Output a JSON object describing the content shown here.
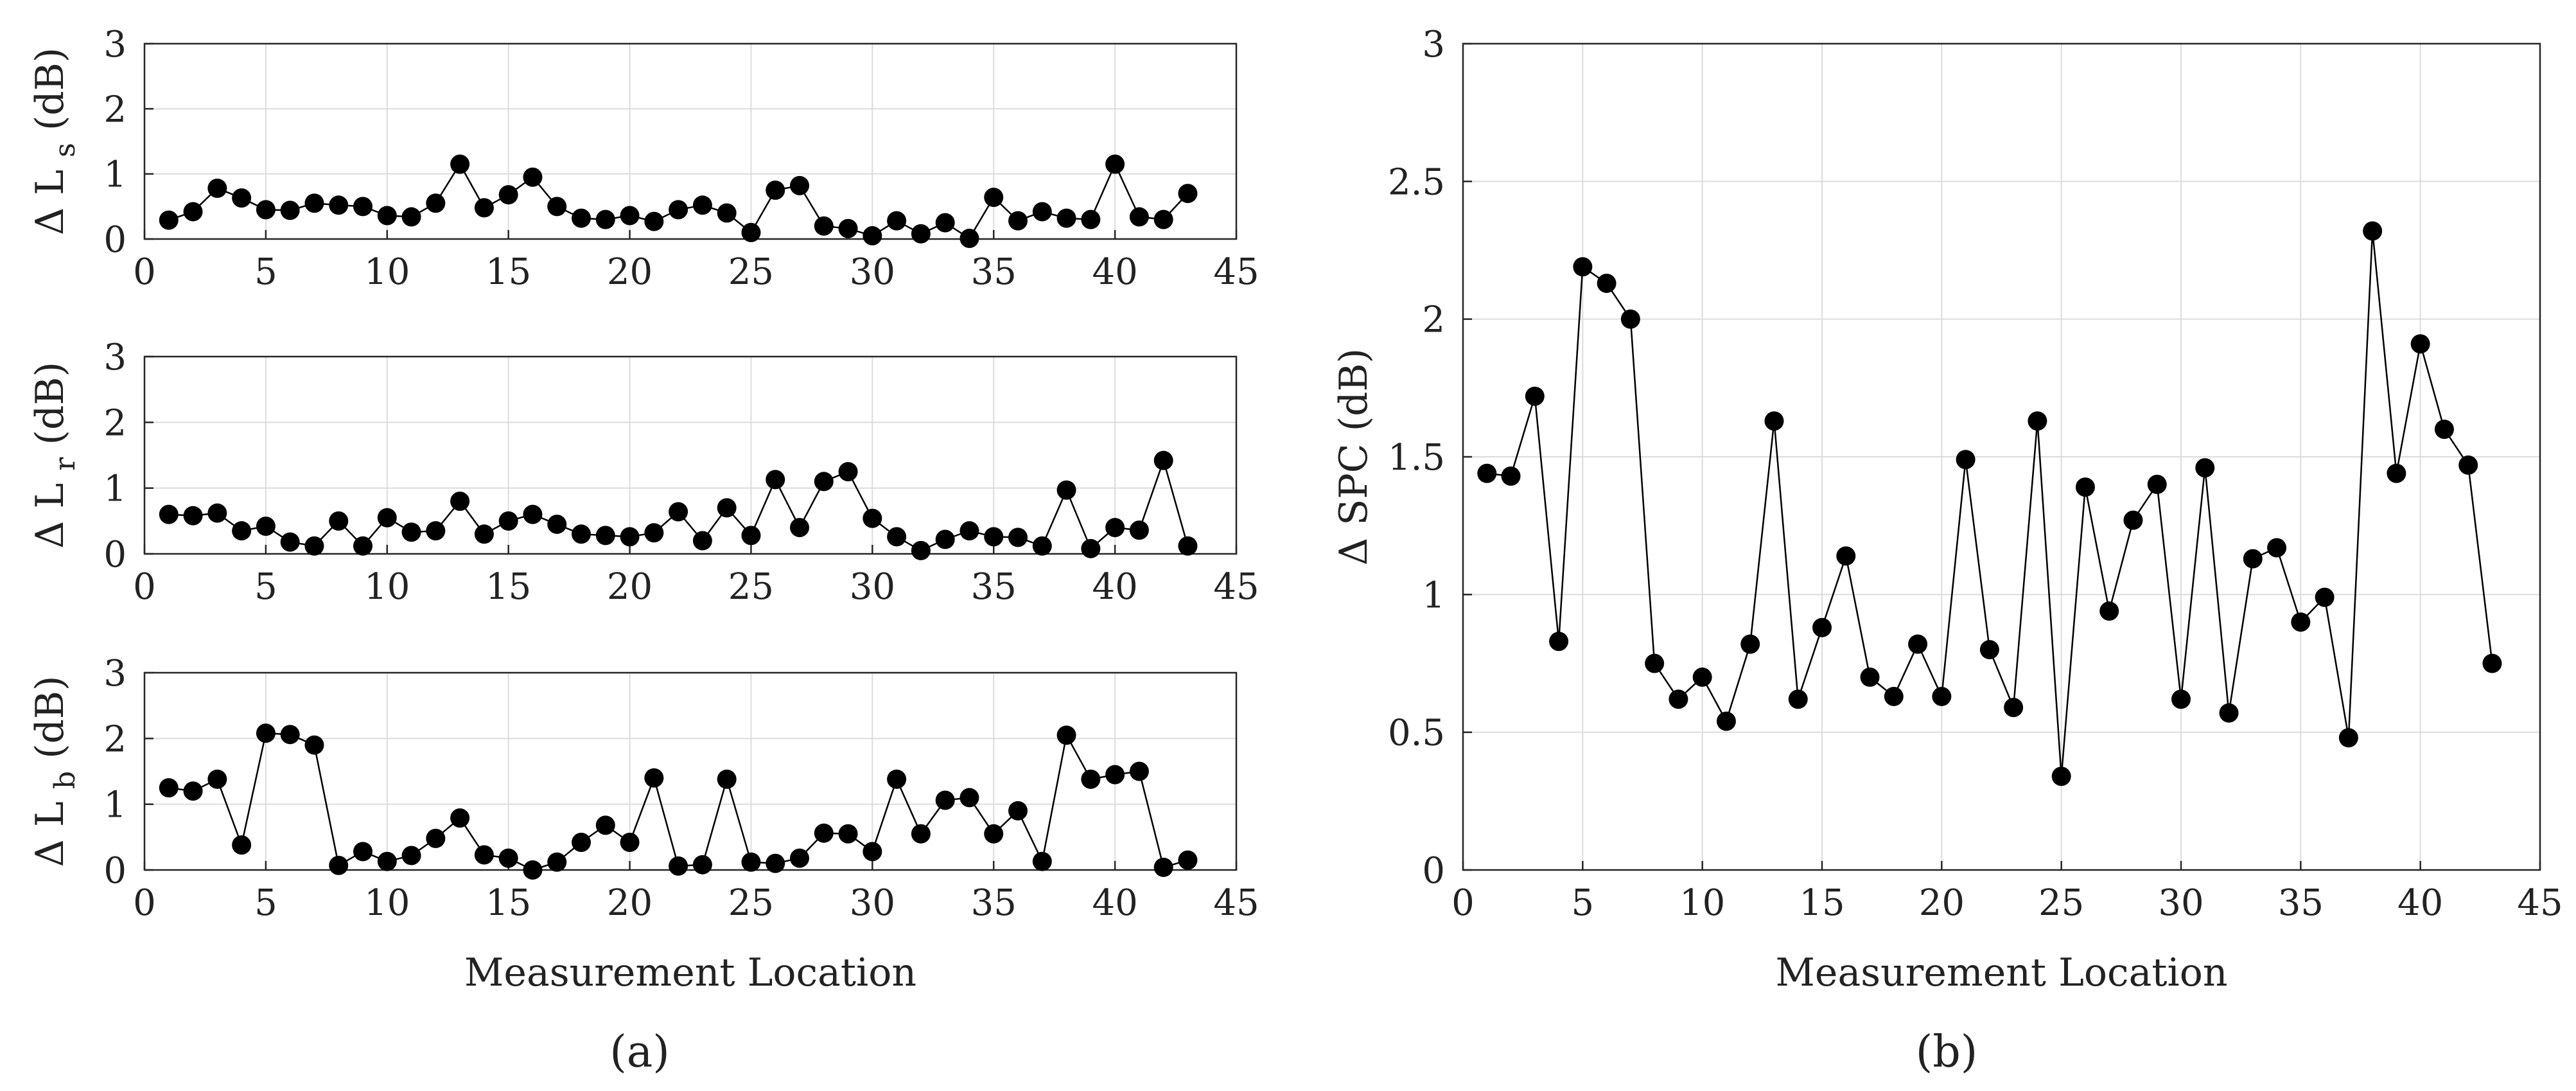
{
  "panel_labels": {
    "a": "(a)",
    "b": "(b)"
  },
  "colors": {
    "line": "#000000",
    "marker": "#000000",
    "grid": "#dcdcdc",
    "frame": "#262626",
    "text": "#222222"
  },
  "chart_data": [
    {
      "id": "a-top",
      "type": "line",
      "panel": "(a)",
      "title": "",
      "xlabel": "",
      "ylabel": "Δ L",
      "ylabel_sub": "s",
      "ylabel_unit": "(dB)",
      "xlim": [
        0,
        45
      ],
      "ylim": [
        0,
        3
      ],
      "xticks": [
        0,
        5,
        10,
        15,
        20,
        25,
        30,
        35,
        40,
        45
      ],
      "yticks": [
        0,
        1,
        2,
        3
      ],
      "grid": true,
      "marker": "filled-circle",
      "x": [
        1,
        2,
        3,
        4,
        5,
        6,
        7,
        8,
        9,
        10,
        11,
        12,
        13,
        14,
        15,
        16,
        17,
        18,
        19,
        20,
        21,
        22,
        23,
        24,
        25,
        26,
        27,
        28,
        29,
        30,
        31,
        32,
        33,
        34,
        35,
        36,
        37,
        38,
        39,
        40,
        41,
        42,
        43
      ],
      "y": [
        0.29,
        0.42,
        0.78,
        0.63,
        0.45,
        0.44,
        0.55,
        0.52,
        0.5,
        0.36,
        0.34,
        0.55,
        1.15,
        0.48,
        0.68,
        0.95,
        0.5,
        0.32,
        0.3,
        0.36,
        0.27,
        0.45,
        0.52,
        0.4,
        0.1,
        0.75,
        0.82,
        0.2,
        0.16,
        0.05,
        0.28,
        0.08,
        0.25,
        0.01,
        0.64,
        0.28,
        0.42,
        0.32,
        0.3,
        1.15,
        0.34,
        0.3,
        0.7
      ]
    },
    {
      "id": "a-middle",
      "type": "line",
      "panel": "(a)",
      "title": "",
      "xlabel": "",
      "ylabel": "Δ L",
      "ylabel_sub": "r",
      "ylabel_unit": "(dB)",
      "xlim": [
        0,
        45
      ],
      "ylim": [
        0,
        3
      ],
      "xticks": [
        0,
        5,
        10,
        15,
        20,
        25,
        30,
        35,
        40,
        45
      ],
      "yticks": [
        0,
        1,
        2,
        3
      ],
      "grid": true,
      "marker": "filled-circle",
      "x": [
        1,
        2,
        3,
        4,
        5,
        6,
        7,
        8,
        9,
        10,
        11,
        12,
        13,
        14,
        15,
        16,
        17,
        18,
        19,
        20,
        21,
        22,
        23,
        24,
        25,
        26,
        27,
        28,
        29,
        30,
        31,
        32,
        33,
        34,
        35,
        36,
        37,
        38,
        39,
        40,
        41,
        42,
        43
      ],
      "y": [
        0.6,
        0.58,
        0.62,
        0.35,
        0.42,
        0.18,
        0.12,
        0.5,
        0.12,
        0.55,
        0.33,
        0.35,
        0.8,
        0.3,
        0.5,
        0.6,
        0.45,
        0.3,
        0.28,
        0.26,
        0.32,
        0.64,
        0.2,
        0.7,
        0.28,
        1.13,
        0.4,
        1.1,
        1.25,
        0.54,
        0.26,
        0.05,
        0.22,
        0.35,
        0.26,
        0.25,
        0.12,
        0.97,
        0.08,
        0.4,
        0.36,
        1.42,
        0.12
      ]
    },
    {
      "id": "a-bottom",
      "type": "line",
      "panel": "(a)",
      "title": "",
      "xlabel": "Measurement Location",
      "ylabel": "Δ L",
      "ylabel_sub": "b",
      "ylabel_unit": "(dB)",
      "xlim": [
        0,
        45
      ],
      "ylim": [
        0,
        3
      ],
      "xticks": [
        0,
        5,
        10,
        15,
        20,
        25,
        30,
        35,
        40,
        45
      ],
      "yticks": [
        0,
        1,
        2,
        3
      ],
      "grid": true,
      "marker": "filled-circle",
      "x": [
        1,
        2,
        3,
        4,
        5,
        6,
        7,
        8,
        9,
        10,
        11,
        12,
        13,
        14,
        15,
        16,
        17,
        18,
        19,
        20,
        21,
        22,
        23,
        24,
        25,
        26,
        27,
        28,
        29,
        30,
        31,
        32,
        33,
        34,
        35,
        36,
        37,
        38,
        39,
        40,
        41,
        42,
        43
      ],
      "y": [
        1.25,
        1.2,
        1.38,
        0.38,
        2.08,
        2.06,
        1.9,
        0.07,
        0.28,
        0.13,
        0.22,
        0.48,
        0.79,
        0.23,
        0.18,
        0.0,
        0.12,
        0.42,
        0.68,
        0.42,
        1.4,
        0.06,
        0.08,
        1.38,
        0.12,
        0.1,
        0.18,
        0.56,
        0.55,
        0.28,
        1.38,
        0.55,
        1.06,
        1.1,
        0.55,
        0.9,
        0.13,
        2.05,
        1.38,
        1.45,
        1.5,
        0.04,
        0.15
      ]
    },
    {
      "id": "b",
      "type": "line",
      "panel": "(b)",
      "title": "",
      "xlabel": "Measurement Location",
      "ylabel": "Δ SPC (dB)",
      "xlim": [
        0,
        45
      ],
      "ylim": [
        0,
        3
      ],
      "xticks": [
        0,
        5,
        10,
        15,
        20,
        25,
        30,
        35,
        40,
        45
      ],
      "yticks": [
        0,
        0.5,
        1,
        1.5,
        2,
        2.5,
        3
      ],
      "grid": true,
      "marker": "filled-circle",
      "x": [
        1,
        2,
        3,
        4,
        5,
        6,
        7,
        8,
        9,
        10,
        11,
        12,
        13,
        14,
        15,
        16,
        17,
        18,
        19,
        20,
        21,
        22,
        23,
        24,
        25,
        26,
        27,
        28,
        29,
        30,
        31,
        32,
        33,
        34,
        35,
        36,
        37,
        38,
        39,
        40,
        41,
        42,
        43
      ],
      "y": [
        1.44,
        1.43,
        1.72,
        0.83,
        2.19,
        2.13,
        2.0,
        0.75,
        0.62,
        0.7,
        0.54,
        0.82,
        1.63,
        0.62,
        0.88,
        1.14,
        0.7,
        0.63,
        0.82,
        0.63,
        1.49,
        0.8,
        0.59,
        1.63,
        0.34,
        1.39,
        0.94,
        1.27,
        1.4,
        0.62,
        1.46,
        0.57,
        1.13,
        1.17,
        0.9,
        0.99,
        0.48,
        2.32,
        1.44,
        1.91,
        1.6,
        1.47,
        0.75
      ]
    }
  ]
}
